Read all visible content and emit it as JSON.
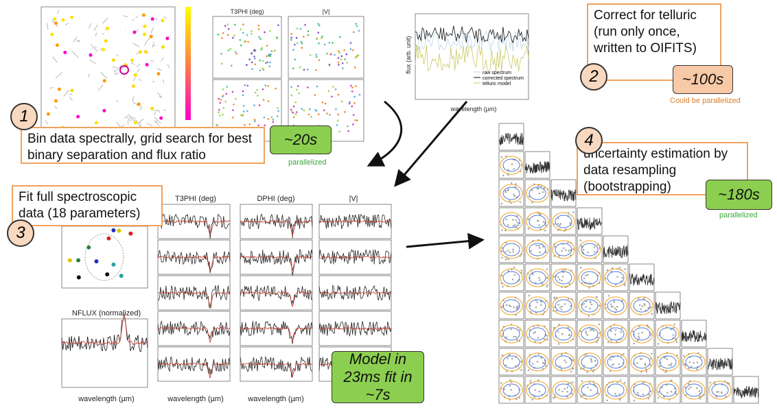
{
  "steps": [
    {
      "number": "1",
      "text": "Bin data spectrally, grid search for best binary separation and flux ratio",
      "time": "~20s",
      "note": "parallelized"
    },
    {
      "number": "2",
      "text": "Correct for telluric (run only once, written to OIFITS)",
      "time": "~100s",
      "note": "Could be parallelized"
    },
    {
      "number": "3",
      "text": "Fit full spectroscopic data (18 parameters)",
      "time": "Model in 23ms fit in ~7s"
    },
    {
      "number": "4",
      "text": "uncertainty estimation by data resampling (bootstrapping)",
      "time": "~180s",
      "note": "parallelized"
    }
  ],
  "panels": {
    "grid_t3phi": "T3PHI (deg)",
    "grid_v": "|V|",
    "spectrum_xlabel": "wavelength (µm)",
    "spectrum_ylabel": "flux (arb. unit)",
    "spectrum_legend": [
      "raw spectrum",
      "corrected spectrum",
      "telluric model"
    ],
    "fit_t3phi": "T3PHI (deg)",
    "fit_dphi": "DPHI (deg)",
    "fit_v": "|V|",
    "nflux": "NFLUX (normalized)",
    "fit_xlabel": "wavelength (µm)"
  }
}
